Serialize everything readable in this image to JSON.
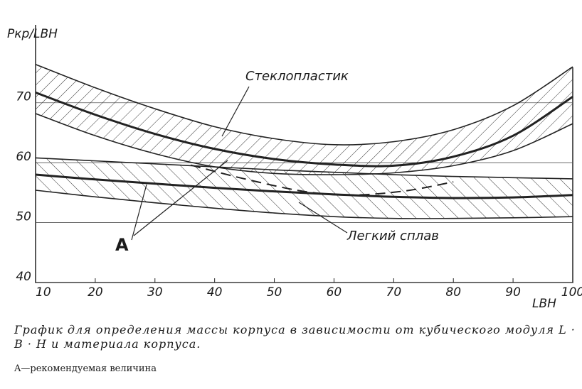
{
  "chart_data": {
    "type": "line",
    "ylabel": "Pкр/LBH",
    "xlabel": "LBH",
    "xlim": [
      10,
      100
    ],
    "xticks": [
      10,
      20,
      30,
      40,
      50,
      60,
      70,
      80,
      90,
      100
    ],
    "ylim": [
      40,
      83
    ],
    "yticks": [
      40,
      50,
      60,
      70
    ],
    "grid": true,
    "series": [
      {
        "color": "#222",
        "style": "thin",
        "x": [
          10,
          20,
          30,
          40,
          50,
          60,
          70,
          80,
          90,
          100
        ],
        "values": [
          76.4,
          72.5,
          69,
          66,
          64,
          63,
          63.5,
          65.5,
          69.5,
          76
        ]
      },
      {
        "color": "#222",
        "style": "thick",
        "x": [
          10,
          20,
          30,
          40,
          50,
          60,
          70,
          80,
          90,
          100
        ],
        "values": [
          71.7,
          68,
          64.8,
          62.3,
          60.6,
          59.7,
          59.5,
          61,
          64.5,
          71
        ]
      },
      {
        "color": "#222",
        "style": "thin",
        "x": [
          10,
          20,
          30,
          40,
          50,
          60,
          70,
          80,
          90,
          100
        ],
        "values": [
          68.2,
          64.5,
          61.5,
          59.3,
          58.2,
          58,
          58.3,
          59.5,
          62,
          66.5
        ]
      },
      {
        "color": "#222",
        "style": "thin",
        "x": [
          10,
          20,
          30,
          40,
          50,
          60,
          70,
          80,
          90,
          100
        ],
        "values": [
          60.8,
          60.3,
          59.8,
          59.3,
          58.8,
          58.4,
          58,
          57.7,
          57.5,
          57.3
        ]
      },
      {
        "color": "#222",
        "style": "thick",
        "x": [
          10,
          20,
          30,
          40,
          50,
          60,
          70,
          80,
          90,
          100
        ],
        "values": [
          58,
          57.2,
          56.5,
          55.8,
          55.2,
          54.7,
          54.3,
          54.1,
          54.2,
          54.6
        ]
      },
      {
        "color": "#222",
        "style": "thin",
        "x": [
          10,
          20,
          30,
          40,
          50,
          60,
          70,
          80,
          90,
          100
        ],
        "values": [
          55.4,
          54.3,
          53.3,
          52.4,
          51.6,
          51,
          50.7,
          50.7,
          50.8,
          51
        ]
      },
      {
        "color": "#222",
        "style": "dashed",
        "x": [
          36,
          45,
          55,
          63,
          72,
          80
        ],
        "values": [
          59.6,
          57.3,
          55.2,
          54.6,
          55.3,
          56.8
        ]
      }
    ],
    "annotations": [
      "Стеклопластик",
      "Легкий сплав",
      "A"
    ],
    "caption": "График для определения массы корпуса в зависимости от кубического модуля L · B · H и материала корпуса.",
    "note": "A—рекомендуемая величина"
  }
}
